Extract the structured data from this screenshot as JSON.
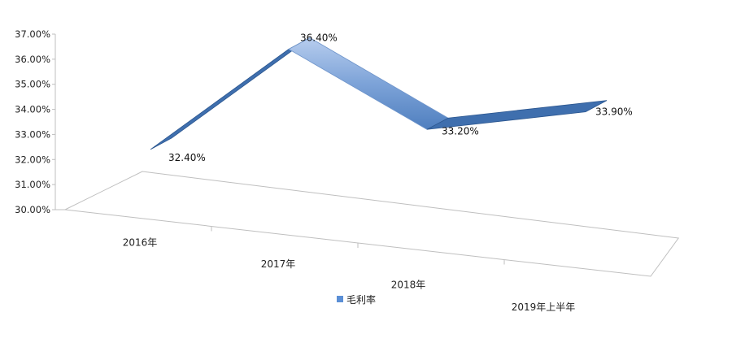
{
  "chart_data": {
    "type": "line",
    "style": "3d-ribbon",
    "categories": [
      "2016年",
      "2017年",
      "2018年",
      "2019年上半年"
    ],
    "series": [
      {
        "name": "毛利率",
        "values": [
          32.4,
          36.4,
          33.2,
          33.9
        ],
        "labels": [
          "32.40%",
          "36.40%",
          "33.20%",
          "33.90%"
        ]
      }
    ],
    "y_ticks": [
      "30.00%",
      "31.00%",
      "32.00%",
      "33.00%",
      "34.00%",
      "35.00%",
      "36.00%",
      "37.00%"
    ],
    "ylim": [
      30,
      37
    ],
    "grid": false,
    "legend": "bottom-center",
    "colors": {
      "ribbon_top": "#8fb3e3",
      "ribbon_side": "#3f6fae",
      "ribbon_edge": "#2b568f",
      "axis": "#bfbfbf",
      "legend_marker": "#5b8fd6"
    }
  }
}
